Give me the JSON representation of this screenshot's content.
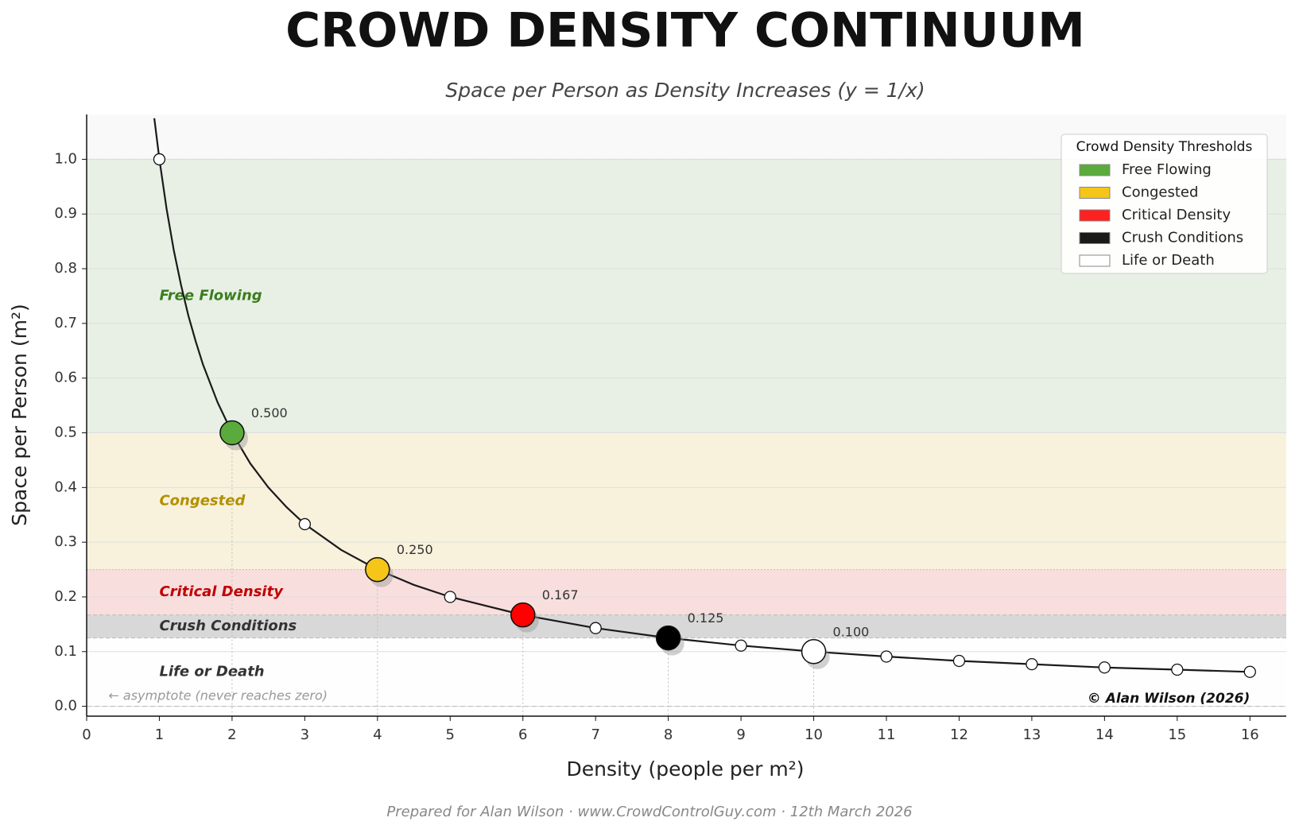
{
  "chart_data": {
    "type": "line",
    "title": "CROWD DENSITY CONTINUUM",
    "subtitle": "Space per Person as Density Increases  (y = 1/x)",
    "xlabel": "Density  (people per m²)",
    "ylabel": "Space per Person  (m²)",
    "footer": "Prepared for Alan Wilson  ·  www.CrowdControlGuy.com  ·  12th March 2026",
    "copyright": "© Alan Wilson (2026)",
    "asymptote_note": "← asymptote (never reaches zero)",
    "legend_title": "Crowd Density Thresholds",
    "legend_position": "upper right",
    "grid": true,
    "xlim": [
      0,
      16.5
    ],
    "ylim": [
      -0.018,
      1.082
    ],
    "xticks": [
      0,
      1,
      2,
      3,
      4,
      5,
      6,
      7,
      8,
      9,
      10,
      11,
      12,
      13,
      14,
      15,
      16
    ],
    "yticks": [
      {
        "value": 0,
        "label": "0.0"
      },
      {
        "value": 0.1,
        "label": "0.1"
      },
      {
        "value": 0.2,
        "label": "0.2"
      },
      {
        "value": 0.3,
        "label": "0.3"
      },
      {
        "value": 0.4,
        "label": "0.4"
      },
      {
        "value": 0.5,
        "label": "0.5"
      },
      {
        "value": 0.6,
        "label": "0.6"
      },
      {
        "value": 0.7,
        "label": "0.7"
      },
      {
        "value": 0.8,
        "label": "0.8"
      },
      {
        "value": 0.9,
        "label": "0.9"
      },
      {
        "value": 1.0,
        "label": "1.0"
      }
    ],
    "bands": [
      {
        "name": "Free Flowing",
        "range": [
          0.5,
          1.0
        ],
        "color": "#5aab3c",
        "label_color": "#3a7d1e"
      },
      {
        "name": "Congested",
        "range": [
          0.25,
          0.5
        ],
        "color": "#f5c518",
        "label_color": "#b38f00"
      },
      {
        "name": "Critical Density",
        "range": [
          0.167,
          0.25
        ],
        "color": "#ff2020",
        "label_color": "#c00000"
      },
      {
        "name": "Crush Conditions",
        "range": [
          0.125,
          0.167
        ],
        "color": "#1a1a1a",
        "label_color": "#333333"
      },
      {
        "name": "Life or Death",
        "range": [
          0,
          0.125
        ],
        "color": "#ffffff",
        "label_color": "#333333"
      }
    ],
    "curve": {
      "color": "#1a1a1a",
      "x": [
        0.93,
        1,
        1.1,
        1.2,
        1.3,
        1.4,
        1.5,
        1.6,
        1.8,
        2,
        2.25,
        2.5,
        2.75,
        3,
        3.5,
        4,
        4.5,
        5,
        6,
        7,
        8,
        9,
        10,
        11,
        12,
        13,
        14,
        15,
        16
      ],
      "values": [
        1.075,
        1,
        0.909,
        0.833,
        0.769,
        0.714,
        0.667,
        0.625,
        0.556,
        0.5,
        0.444,
        0.4,
        0.364,
        0.333,
        0.286,
        0.25,
        0.222,
        0.2,
        0.167,
        0.143,
        0.125,
        0.111,
        0.1,
        0.091,
        0.083,
        0.077,
        0.071,
        0.067,
        0.063
      ]
    },
    "markers": {
      "color": "#ffffff",
      "x": [
        1,
        2,
        3,
        4,
        5,
        6,
        7,
        8,
        9,
        10,
        11,
        12,
        13,
        14,
        15,
        16
      ],
      "values": [
        1,
        0.5,
        0.333,
        0.25,
        0.2,
        0.167,
        0.143,
        0.125,
        0.111,
        0.1,
        0.091,
        0.083,
        0.077,
        0.071,
        0.067,
        0.063
      ]
    },
    "thresholds": {
      "x": [
        2,
        4,
        6,
        8,
        10
      ],
      "values": [
        0.5,
        0.25,
        0.167,
        0.125,
        0.1
      ],
      "value_labels": [
        "0.500",
        "0.250",
        "0.167",
        "0.125",
        "0.100"
      ],
      "colors": [
        "#5aab3c",
        "#f5c518",
        "#ff0000",
        "#000000",
        "#ffffff"
      ]
    }
  }
}
